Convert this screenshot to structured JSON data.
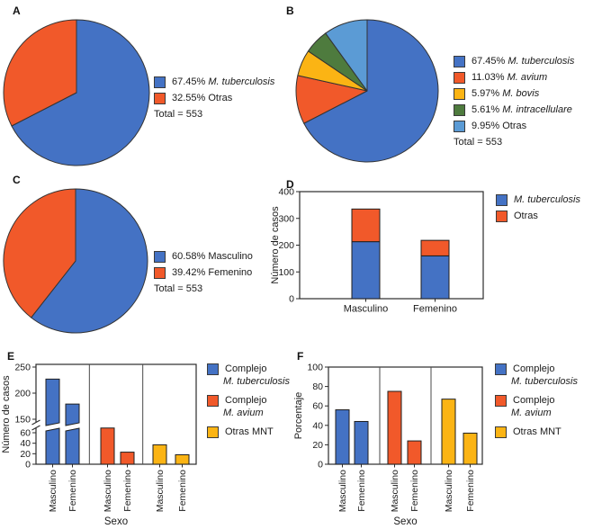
{
  "palette": {
    "blue": "#4472C4",
    "orange": "#F1592A",
    "yellow": "#FBB414",
    "green": "#4E7B3E",
    "light_blue": "#5B9BD5",
    "outline": "#333333",
    "axis": "#2b2b2b"
  },
  "panels": {
    "A": {
      "label": "A",
      "chart_data": {
        "type": "pie",
        "total_label": "Total = 553",
        "slices": [
          {
            "value": 67.45,
            "pct_label": "67.45%",
            "name": "M. tuberculosis",
            "italic": true,
            "color_key": "blue"
          },
          {
            "value": 32.55,
            "pct_label": "32.55%",
            "name": "Otras",
            "italic": false,
            "color_key": "orange"
          }
        ]
      }
    },
    "B": {
      "label": "B",
      "chart_data": {
        "type": "pie",
        "total_label": "Total = 553",
        "slices": [
          {
            "value": 67.45,
            "pct_label": "67.45%",
            "name": "M. tuberculosis",
            "italic": true,
            "color_key": "blue"
          },
          {
            "value": 11.03,
            "pct_label": "11.03%",
            "name": "M. avium",
            "italic": true,
            "color_key": "orange"
          },
          {
            "value": 5.97,
            "pct_label": "5.97%",
            "name": "M. bovis",
            "italic": true,
            "color_key": "yellow"
          },
          {
            "value": 5.61,
            "pct_label": "5.61%",
            "name": "M. intracellulare",
            "italic": true,
            "color_key": "green"
          },
          {
            "value": 9.95,
            "pct_label": "9.95%",
            "name": "Otras",
            "italic": false,
            "color_key": "light_blue"
          }
        ]
      }
    },
    "C": {
      "label": "C",
      "chart_data": {
        "type": "pie",
        "total_label": "Total = 553",
        "slices": [
          {
            "value": 60.58,
            "pct_label": "60.58%",
            "name": "Masculino",
            "italic": false,
            "color_key": "blue"
          },
          {
            "value": 39.42,
            "pct_label": "39.42%",
            "name": "Femenino",
            "italic": false,
            "color_key": "orange"
          }
        ]
      }
    },
    "D": {
      "label": "D",
      "chart_data": {
        "type": "stacked_bar",
        "ylabel": "Número de casos",
        "ylim": [
          0,
          400
        ],
        "yticks": [
          0,
          100,
          200,
          300,
          400
        ],
        "categories": [
          "Masculino",
          "Femenino"
        ],
        "series": [
          {
            "name": "M. tuberculosis",
            "italic": true,
            "color_key": "blue",
            "values": [
              213,
              160
            ]
          },
          {
            "name": "Otras",
            "italic": false,
            "color_key": "orange",
            "values": [
              122,
              58
            ]
          }
        ]
      }
    },
    "E": {
      "label": "E",
      "chart_data": {
        "type": "grouped_bar_broken_axis",
        "ylabel": "Número de casos",
        "xlabel": "Sexo",
        "categories": [
          "Masculino",
          "Femenino"
        ],
        "axis_break": {
          "lower_range": [
            0,
            60
          ],
          "upper_range": [
            150,
            250
          ],
          "lower_ticks": [
            0,
            20,
            40,
            60
          ],
          "upper_ticks": [
            150,
            200,
            250
          ]
        },
        "series": [
          {
            "name": [
              "Complejo",
              "M. tuberculosis"
            ],
            "italic_line": 1,
            "color_key": "blue",
            "values": [
              227,
              179
            ]
          },
          {
            "name": [
              "Complejo",
              "M. avium"
            ],
            "italic_line": 1,
            "color_key": "orange",
            "values": [
              69,
              23
            ]
          },
          {
            "name": [
              "Otras MNT"
            ],
            "color_key": "yellow",
            "values": [
              37,
              18
            ]
          }
        ]
      }
    },
    "F": {
      "label": "F",
      "chart_data": {
        "type": "grouped_bar",
        "ylabel": "Porcentaje",
        "xlabel": "Sexo",
        "ylim": [
          0,
          100
        ],
        "yticks": [
          0,
          20,
          40,
          60,
          80,
          100
        ],
        "categories": [
          "Masculino",
          "Femenino"
        ],
        "series": [
          {
            "name": [
              "Complejo",
              "M. tuberculosis"
            ],
            "italic_line": 1,
            "color_key": "blue",
            "values": [
              56,
              44
            ]
          },
          {
            "name": [
              "Complejo",
              "M. avium"
            ],
            "italic_line": 1,
            "color_key": "orange",
            "values": [
              75,
              24
            ]
          },
          {
            "name": [
              "Otras MNT"
            ],
            "color_key": "yellow",
            "values": [
              67,
              32
            ]
          }
        ]
      }
    }
  }
}
